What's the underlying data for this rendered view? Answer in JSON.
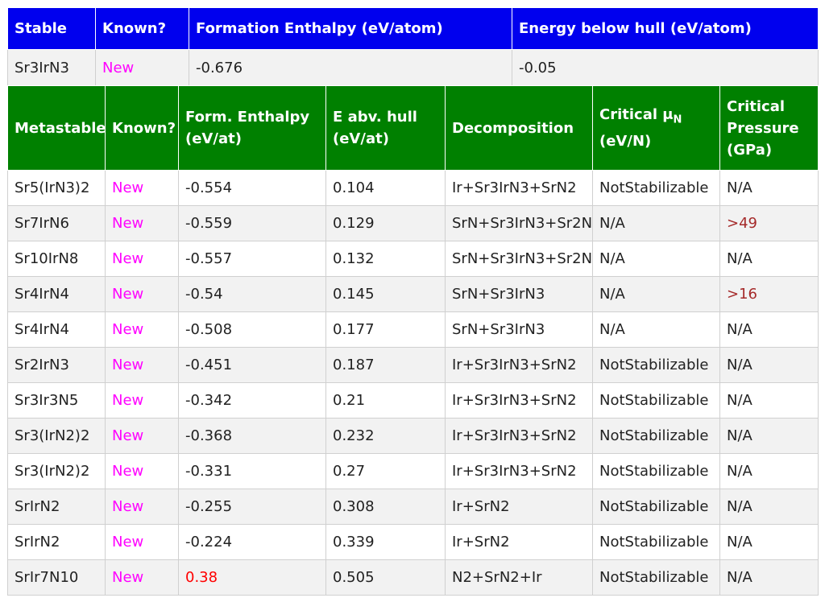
{
  "stable": {
    "headers": [
      "Stable",
      "Known?",
      "Formation Enthalpy (eV/atom)",
      "Energy below hull (eV/atom)"
    ],
    "row": [
      "Sr3IrN3",
      "New",
      "-0.676",
      "-0.05"
    ]
  },
  "metastable": {
    "headers": {
      "h0": "Metastable",
      "h1": "Known?",
      "h2a": "Form. Enthalpy",
      "h2b": "(eV/at)",
      "h3a": "E abv. hull",
      "h3b": "(eV/at)",
      "h4": "Decomposition",
      "h5a": "Critical μ",
      "h5sub": "N",
      "h5b": "(eV/N)",
      "h6a": "Critical",
      "h6b": "Pressure",
      "h6c": "(GPa)"
    },
    "rows": [
      [
        "Sr5(IrN3)2",
        "New",
        "-0.554",
        "0.104",
        "Ir+Sr3IrN3+SrN2",
        "NotStabilizable",
        "N/A"
      ],
      [
        "Sr7IrN6",
        "New",
        "-0.559",
        "0.129",
        "SrN+Sr3IrN3+Sr2N",
        "N/A",
        ">49"
      ],
      [
        "Sr10IrN8",
        "New",
        "-0.557",
        "0.132",
        "SrN+Sr3IrN3+Sr2N",
        "N/A",
        "N/A"
      ],
      [
        "Sr4IrN4",
        "New",
        "-0.54",
        "0.145",
        "SrN+Sr3IrN3",
        "N/A",
        ">16"
      ],
      [
        "Sr4IrN4",
        "New",
        "-0.508",
        "0.177",
        "SrN+Sr3IrN3",
        "N/A",
        "N/A"
      ],
      [
        "Sr2IrN3",
        "New",
        "-0.451",
        "0.187",
        "Ir+Sr3IrN3+SrN2",
        "NotStabilizable",
        "N/A"
      ],
      [
        "Sr3Ir3N5",
        "New",
        "-0.342",
        "0.21",
        "Ir+Sr3IrN3+SrN2",
        "NotStabilizable",
        "N/A"
      ],
      [
        "Sr3(IrN2)2",
        "New",
        "-0.368",
        "0.232",
        "Ir+Sr3IrN3+SrN2",
        "NotStabilizable",
        "N/A"
      ],
      [
        "Sr3(IrN2)2",
        "New",
        "-0.331",
        "0.27",
        "Ir+Sr3IrN3+SrN2",
        "NotStabilizable",
        "N/A"
      ],
      [
        "SrIrN2",
        "New",
        "-0.255",
        "0.308",
        "Ir+SrN2",
        "NotStabilizable",
        "N/A"
      ],
      [
        "SrIrN2",
        "New",
        "-0.224",
        "0.339",
        "Ir+SrN2",
        "NotStabilizable",
        "N/A"
      ],
      [
        "SrIr7N10",
        "New",
        "0.38",
        "0.505",
        "N2+SrN2+Ir",
        "NotStabilizable",
        "N/A"
      ]
    ]
  },
  "colors": {
    "stable_header": "#0000ee",
    "metastable_header": "#008000",
    "new_text": "#ff00ff",
    "positive_enthalpy": "#ff0000",
    "pressure_text": "#a52a2a"
  }
}
